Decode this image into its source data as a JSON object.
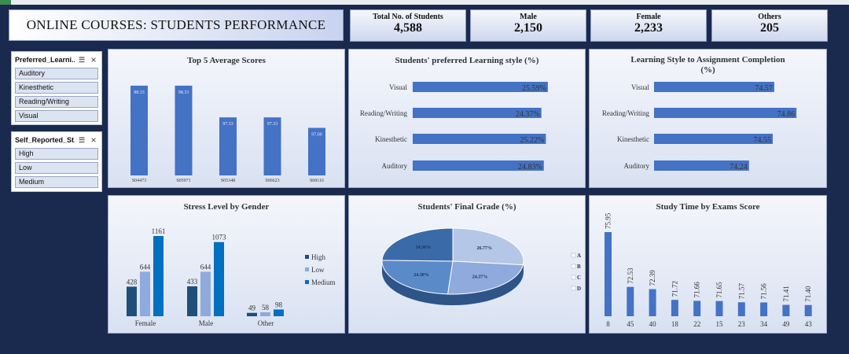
{
  "header": {
    "title": "ONLINE COURSES: STUDENTS PERFORMANCE"
  },
  "kpis": [
    {
      "label": "Total No. of Students",
      "value": "4,588"
    },
    {
      "label": "Male",
      "value": "2,150"
    },
    {
      "label": "Female",
      "value": "2,233"
    },
    {
      "label": "Others",
      "value": "205"
    }
  ],
  "slicers": [
    {
      "title": "Preferred_Learni...",
      "items": [
        "Auditory",
        "Kinesthetic",
        "Reading/Writing",
        "Visual"
      ]
    },
    {
      "title": "Self_Reported_St...",
      "items": [
        "High",
        "Low",
        "Medium"
      ]
    }
  ],
  "colors": {
    "bar": "#4472c4",
    "high": "#1f4e79",
    "low": "#8faadc",
    "medium": "#0070c0"
  },
  "chart_data": [
    {
      "type": "bar",
      "title": "Top 5 Average Scores",
      "categories": [
        "S04473",
        "S05971",
        "S05348",
        "S06623",
        "S08116"
      ],
      "values": [
        98.33,
        98.33,
        97.33,
        97.33,
        97.0
      ],
      "labels": [
        "98.33",
        "98.33",
        "97.33",
        "97.33",
        "97.00"
      ],
      "ylim": [
        95.5,
        98.6
      ]
    },
    {
      "type": "bar",
      "orientation": "horizontal",
      "title": "Students' preferred Learning style (%)",
      "categories": [
        "Visual",
        "Reading/Writing",
        "Kinesthetic",
        "Auditory"
      ],
      "values": [
        25.59,
        24.37,
        25.22,
        24.83
      ],
      "labels": [
        "25.59%",
        "24.37%",
        "25.22%",
        "24.83%"
      ],
      "xlim": [
        0,
        26.5
      ]
    },
    {
      "type": "bar",
      "orientation": "horizontal",
      "title": "Learning Style to Assignment Completion (%)",
      "title_lines": [
        "Learning Style to Assignment Completion",
        "(%)"
      ],
      "categories": [
        "Visual",
        "Reading/Writing",
        "Kinesthetic",
        "Auditory"
      ],
      "values": [
        74.57,
        74.86,
        74.55,
        74.24
      ],
      "labels": [
        "74.57",
        "74.86",
        "74.55",
        "74.24"
      ],
      "xlim": [
        73.0,
        74.93
      ]
    },
    {
      "type": "bar",
      "title": "Stress Level by Gender",
      "categories": [
        "Female",
        "Male",
        "Other"
      ],
      "series": [
        {
          "name": "High",
          "values": [
            428,
            433,
            49
          ]
        },
        {
          "name": "Low",
          "values": [
            644,
            644,
            58
          ]
        },
        {
          "name": "Medium",
          "values": [
            1161,
            1073,
            98
          ]
        }
      ],
      "ylim": [
        0,
        1161
      ],
      "legend": "right"
    },
    {
      "type": "pie",
      "title": "Students' Final Grade (%)",
      "categories": [
        "A",
        "B",
        "C",
        "D"
      ],
      "values": [
        26.77,
        24.37,
        24.3,
        24.56
      ],
      "labels": [
        "26.77%",
        "24.37%",
        "24.30%",
        "24.56%"
      ],
      "legend": "right"
    },
    {
      "type": "bar",
      "title": "Study Time by Exams Score",
      "categories": [
        "8",
        "45",
        "40",
        "18",
        "22",
        "15",
        "23",
        "34",
        "49",
        "43"
      ],
      "values": [
        75.95,
        72.53,
        72.39,
        71.72,
        71.66,
        71.65,
        71.57,
        71.56,
        71.41,
        71.4
      ],
      "labels": [
        "75.95",
        "72.53",
        "72.39",
        "71.72",
        "71.66",
        "71.65",
        "71.57",
        "71.56",
        "71.41",
        "71.40"
      ],
      "ylim": [
        70.7,
        75.95
      ]
    }
  ]
}
